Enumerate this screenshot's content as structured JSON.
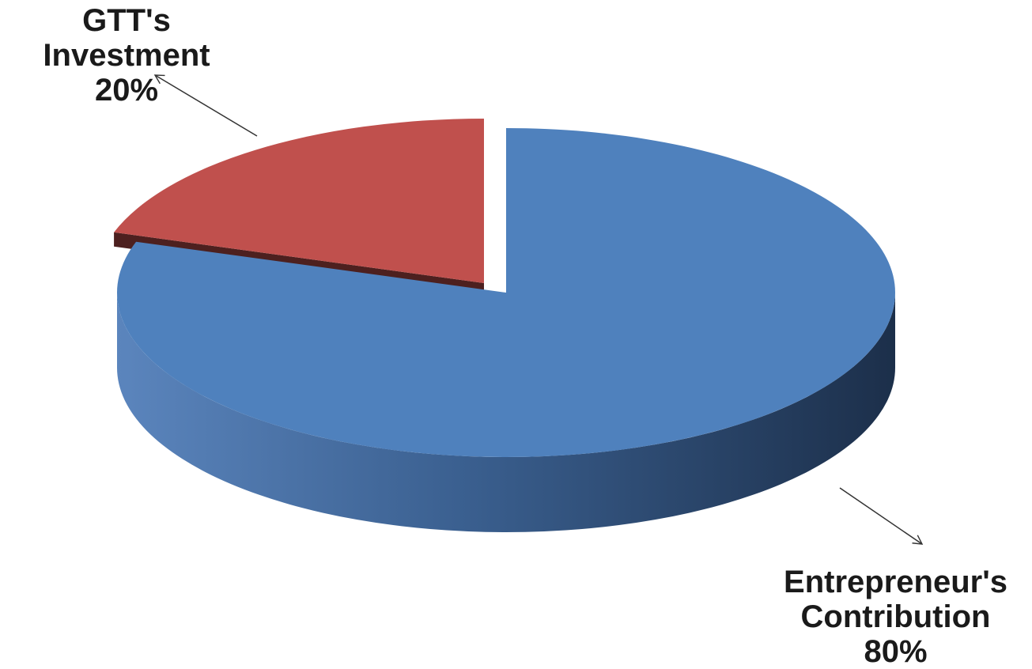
{
  "chart_data": {
    "type": "pie",
    "style": "3d-exploded",
    "slices": [
      {
        "name": "GTT's Investment",
        "value": 20,
        "label": "20%",
        "color": "#c0504d",
        "exploded": true
      },
      {
        "name": "Entrepreneur's Contribution",
        "value": 80,
        "label": "80%",
        "color": "#4f81bd",
        "exploded": false
      }
    ],
    "labels": {
      "gtt": {
        "lines": [
          "GTT's",
          "Investment"
        ],
        "pct": "20%"
      },
      "entrepreneur": {
        "lines": [
          "Entrepreneur's",
          "Contribution"
        ],
        "pct": "80%"
      }
    }
  }
}
